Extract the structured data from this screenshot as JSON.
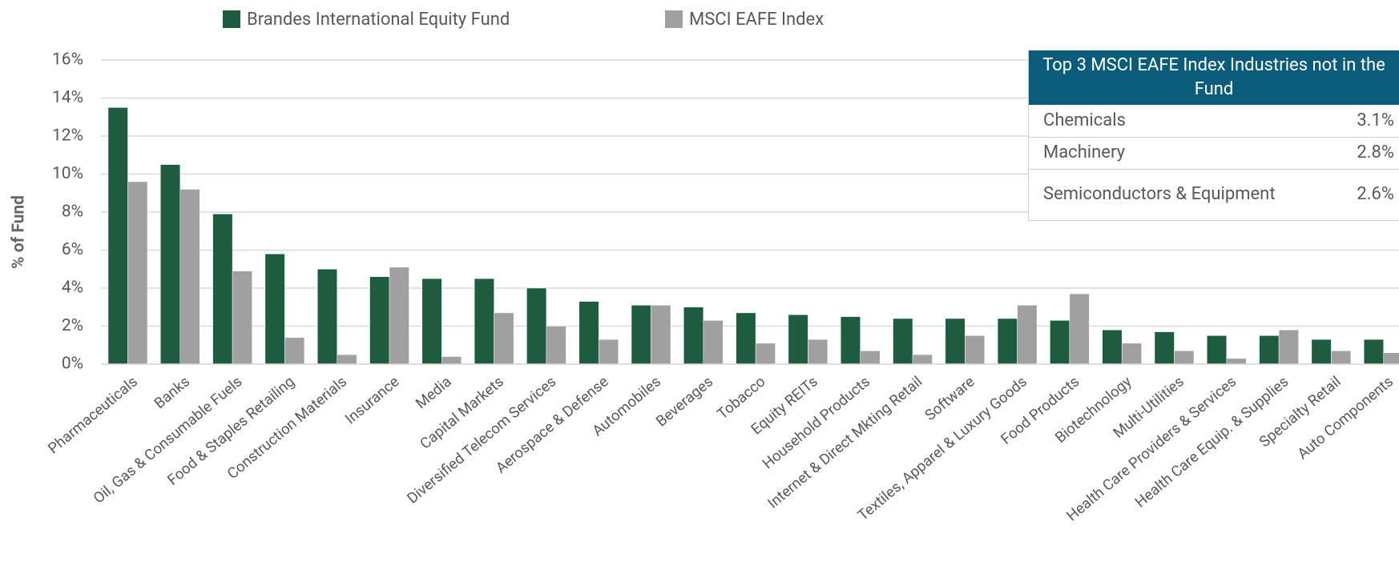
{
  "chart_data": {
    "type": "bar",
    "ylabel": "% of Fund",
    "categories": [
      "Pharmaceuticals",
      "Banks",
      "Oil, Gas & Consumable Fuels",
      "Food & Staples Retailing",
      "Construction Materials",
      "Insurance",
      "Media",
      "Capital Markets",
      "Diversified Telecom Services",
      "Aerospace & Defense",
      "Automobiles",
      "Beverages",
      "Tobacco",
      "Equity REITs",
      "Household Products",
      "Internet & Direct Mkting Retail",
      "Software",
      "Textiles, Apparel & Luxury Goods",
      "Food Products",
      "Biotechnology",
      "Multi-Utilities",
      "Health Care Providers & Services",
      "Health Care Equip. & Supplies",
      "Specialty Retail",
      "Auto Components"
    ],
    "series": [
      {
        "name": "Brandes International Equity Fund",
        "color": "#1e5c3f",
        "values": [
          13.5,
          10.5,
          7.9,
          5.8,
          5.0,
          4.6,
          4.5,
          4.5,
          4.0,
          3.3,
          3.1,
          3.0,
          2.7,
          2.6,
          2.5,
          2.4,
          2.4,
          2.4,
          2.3,
          1.8,
          1.7,
          1.5,
          1.5,
          1.3,
          1.3
        ]
      },
      {
        "name": "MSCI EAFE Index",
        "color": "#a0a0a0",
        "values": [
          9.6,
          9.2,
          4.9,
          1.4,
          0.5,
          5.1,
          0.4,
          2.7,
          2.0,
          1.3,
          3.1,
          2.3,
          1.1,
          1.3,
          0.7,
          0.5,
          1.5,
          3.1,
          3.7,
          1.1,
          0.7,
          0.3,
          1.8,
          0.7,
          0.6
        ]
      }
    ],
    "ylim": [
      0,
      16
    ],
    "yticks": [
      {
        "value": 0,
        "label": "0%"
      },
      {
        "value": 2,
        "label": "2%"
      },
      {
        "value": 4,
        "label": "4%"
      },
      {
        "value": 6,
        "label": "6%"
      },
      {
        "value": 8,
        "label": "8%"
      },
      {
        "value": 10,
        "label": "10%"
      },
      {
        "value": 12,
        "label": "12%"
      },
      {
        "value": 14,
        "label": "14%"
      },
      {
        "value": 16,
        "label": "16%"
      }
    ],
    "grid": true,
    "legend": "top"
  },
  "table": {
    "title": "Top 3 MSCI EAFE Index Industries not in the Fund",
    "rows": [
      [
        "Chemicals",
        "3.1%"
      ],
      [
        "Machinery",
        "2.8%"
      ],
      [
        "Semiconductors & Equipment",
        "2.6%"
      ]
    ]
  }
}
